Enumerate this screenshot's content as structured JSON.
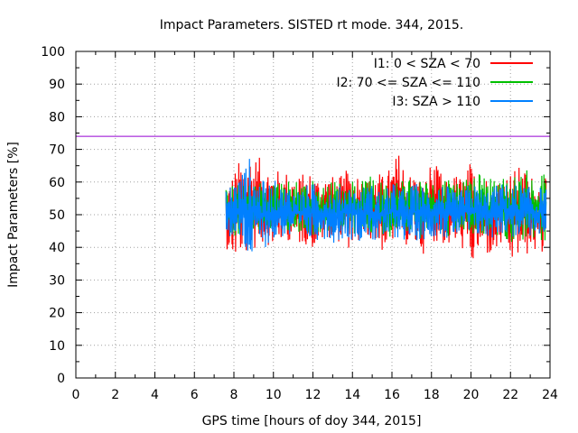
{
  "chart_data": {
    "type": "line",
    "title": "Impact Parameters. SISTED rt mode. 344, 2015.",
    "xlabel": "GPS time [hours of doy 344, 2015]",
    "ylabel": "Impact Parameters [%]",
    "xlim": [
      0,
      24
    ],
    "ylim": [
      0,
      100
    ],
    "x_ticks": [
      "0",
      "2",
      "4",
      "6",
      "8",
      "10",
      "12",
      "14",
      "16",
      "18",
      "20",
      "22",
      "24"
    ],
    "y_ticks": [
      "0",
      "10",
      "20",
      "30",
      "40",
      "50",
      "60",
      "70",
      "80",
      "90",
      "100"
    ],
    "grid": true,
    "legend_position": "top-right",
    "reference_line": {
      "y": 74,
      "color": "#9400d3"
    },
    "series": [
      {
        "name": "I1: 0 < SZA < 70",
        "color": "#ff0000",
        "x": [
          7.6,
          8.0,
          8.4,
          8.8,
          9.2,
          9.6,
          10.0,
          10.4,
          10.8,
          11.2,
          11.6,
          12.0,
          12.4,
          12.8,
          13.2,
          13.6,
          14.0,
          14.4,
          14.8,
          15.2,
          15.6,
          16.0,
          16.4,
          16.8,
          17.2,
          17.6,
          18.0,
          18.4,
          18.8,
          19.2,
          19.6,
          20.0,
          20.4,
          20.8,
          21.2,
          21.6,
          22.0,
          22.4,
          22.8,
          23.2,
          23.6,
          23.8
        ],
        "low": [
          40,
          35,
          37,
          38,
          39,
          41,
          40,
          41,
          42,
          40,
          41,
          39,
          41,
          43,
          42,
          40,
          39,
          41,
          43,
          40,
          38,
          41,
          42,
          40,
          39,
          38,
          42,
          41,
          40,
          40,
          39,
          32,
          38,
          37,
          36,
          40,
          34,
          36,
          37,
          38,
          36,
          43
        ],
        "high": [
          61,
          64,
          68,
          70,
          68,
          66,
          65,
          63,
          64,
          62,
          63,
          64,
          62,
          63,
          61,
          63,
          66,
          63,
          61,
          64,
          62,
          66,
          70,
          63,
          64,
          60,
          67,
          64,
          60,
          63,
          62,
          67,
          61,
          63,
          61,
          64,
          64,
          65,
          64,
          62,
          62,
          61
        ]
      },
      {
        "name": "I2: 70 <= SZA <= 110",
        "color": "#00c000",
        "x": [
          7.6,
          8.0,
          8.4,
          8.8,
          9.2,
          9.6,
          10.0,
          10.4,
          10.8,
          11.2,
          11.6,
          12.0,
          12.4,
          12.8,
          13.2,
          13.6,
          14.0,
          14.4,
          14.8,
          15.2,
          15.6,
          16.0,
          16.4,
          16.8,
          17.2,
          17.6,
          18.0,
          18.4,
          18.8,
          19.2,
          19.6,
          20.0,
          20.4,
          20.8,
          21.2,
          21.6,
          22.0,
          22.4,
          22.8,
          23.2,
          23.6,
          23.8
        ],
        "low": [
          45,
          43,
          44,
          45,
          44,
          46,
          44,
          43,
          45,
          44,
          45,
          43,
          44,
          42,
          45,
          44,
          43,
          44,
          45,
          43,
          44,
          43,
          44,
          45,
          44,
          42,
          44,
          45,
          43,
          44,
          45,
          42,
          43,
          44,
          42,
          43,
          41,
          42,
          41,
          40,
          41,
          42
        ],
        "high": [
          58,
          60,
          59,
          60,
          61,
          59,
          61,
          60,
          61,
          62,
          60,
          61,
          59,
          60,
          61,
          60,
          61,
          60,
          62,
          61,
          60,
          62,
          61,
          63,
          61,
          62,
          60,
          61,
          63,
          61,
          62,
          60,
          63,
          62,
          61,
          62,
          63,
          62,
          64,
          62,
          63,
          64
        ]
      },
      {
        "name": "I3: SZA > 110",
        "color": "#0080ff",
        "x": [
          7.6,
          8.0,
          8.4,
          8.8,
          9.2,
          9.6,
          10.0,
          10.4,
          10.8,
          11.2,
          11.6,
          12.0,
          12.4,
          12.8,
          13.2,
          13.6,
          14.0,
          14.4,
          14.8,
          15.2,
          15.6,
          16.0,
          16.4,
          16.8,
          17.2,
          17.6,
          18.0,
          18.4,
          18.8,
          19.2,
          19.6,
          20.0,
          20.4,
          20.8,
          21.2,
          21.6,
          22.0,
          22.4,
          22.8,
          23.2,
          23.6,
          23.8
        ],
        "low": [
          44,
          41,
          40,
          34,
          39,
          40,
          41,
          43,
          42,
          43,
          42,
          41,
          43,
          42,
          41,
          43,
          42,
          42,
          43,
          41,
          42,
          42,
          43,
          41,
          42,
          42,
          43,
          44,
          42,
          43,
          44,
          42,
          43,
          42,
          43,
          44,
          43,
          42,
          44,
          42,
          43,
          45
        ],
        "high": [
          58,
          61,
          64,
          68,
          62,
          60,
          61,
          59,
          60,
          58,
          59,
          60,
          58,
          59,
          58,
          60,
          59,
          58,
          60,
          59,
          57,
          60,
          59,
          58,
          60,
          59,
          58,
          60,
          59,
          57,
          58,
          60,
          59,
          58,
          59,
          60,
          59,
          60,
          59,
          58,
          59,
          58
        ]
      }
    ]
  }
}
